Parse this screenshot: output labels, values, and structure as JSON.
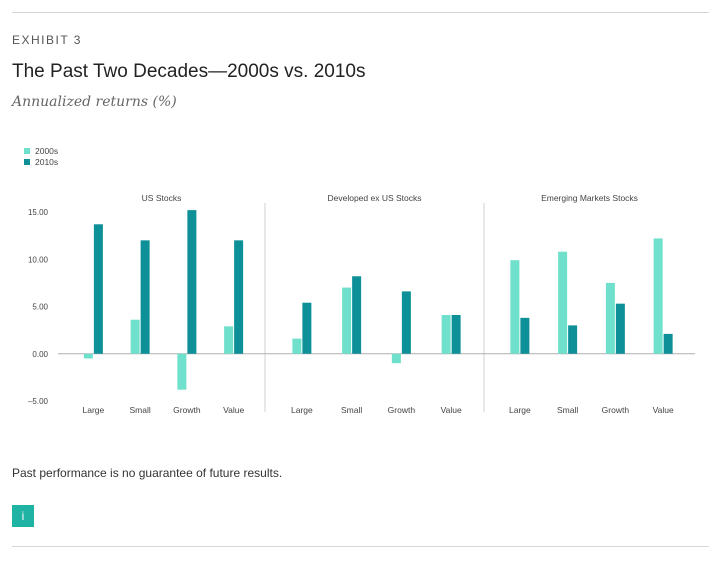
{
  "header": {
    "eyebrow": "EXHIBIT 3",
    "title": "The Past Two Decades—2000s vs. 2010s",
    "subtitle": "Annualized returns (%)"
  },
  "footer": {
    "note": "Past performance is no guarantee of future results.",
    "info_button": "i"
  },
  "colors": {
    "series_2000s": "#6ee0cc",
    "series_2010s": "#0d9098",
    "zero_line": "#b0b0b0",
    "divider": "#d0d0d0"
  },
  "chart_data": {
    "type": "bar",
    "ylim": [
      -5,
      15
    ],
    "yticks": [
      "15.00",
      "10.00",
      "5.00",
      "0.00",
      "–5.00"
    ],
    "ytick_values": [
      15,
      10,
      5,
      0,
      -5
    ],
    "legend_placement": "top-left",
    "series": [
      {
        "name": "2000s"
      },
      {
        "name": "2010s"
      }
    ],
    "panels": [
      {
        "title": "US Stocks",
        "categories": [
          "Large",
          "Small",
          "Growth",
          "Value"
        ],
        "values_2000s": [
          -0.5,
          3.6,
          -3.8,
          2.9
        ],
        "values_2010s": [
          13.7,
          12.0,
          15.2,
          12.0
        ]
      },
      {
        "title": "Developed ex US Stocks",
        "categories": [
          "Large",
          "Small",
          "Growth",
          "Value"
        ],
        "values_2000s": [
          1.6,
          7.0,
          -1.0,
          4.1
        ],
        "values_2010s": [
          5.4,
          8.2,
          6.6,
          4.1
        ]
      },
      {
        "title": "Emerging Markets Stocks",
        "categories": [
          "Large",
          "Small",
          "Growth",
          "Value"
        ],
        "values_2000s": [
          9.9,
          10.8,
          7.5,
          12.2
        ],
        "values_2010s": [
          3.8,
          3.0,
          5.3,
          2.1
        ]
      }
    ]
  }
}
